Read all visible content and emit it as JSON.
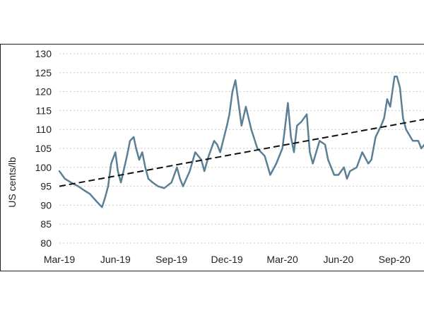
{
  "chart_data": {
    "type": "line",
    "title": "",
    "xlabel": "",
    "ylabel": "US cents/lb",
    "ylim": [
      80,
      130
    ],
    "yticks": [
      80,
      85,
      90,
      95,
      100,
      105,
      110,
      115,
      120,
      125,
      130
    ],
    "xlim": [
      "2019-03-01",
      "2020-10-31"
    ],
    "xticks": [
      {
        "date": "2019-03-01",
        "label": "Mar-19"
      },
      {
        "date": "2019-06-01",
        "label": "Jun-19"
      },
      {
        "date": "2019-09-01",
        "label": "Sep-19"
      },
      {
        "date": "2019-12-01",
        "label": "Dec-19"
      },
      {
        "date": "2020-03-01",
        "label": "Mar-20"
      },
      {
        "date": "2020-06-01",
        "label": "Jun-20"
      },
      {
        "date": "2020-09-01",
        "label": "Sep-20"
      }
    ],
    "grid": "horizontal dotted",
    "colors": {
      "price": "#5b7f95",
      "trend": "#111111",
      "grid": "#c8c8c8",
      "frame": "#222222"
    },
    "series": [
      {
        "style": "solid",
        "x": [
          "2019-03-01",
          "2019-03-10",
          "2019-03-20",
          "2019-04-01",
          "2019-04-10",
          "2019-04-20",
          "2019-05-01",
          "2019-05-10",
          "2019-05-15",
          "2019-05-20",
          "2019-05-25",
          "2019-06-01",
          "2019-06-05",
          "2019-06-10",
          "2019-06-20",
          "2019-06-25",
          "2019-07-01",
          "2019-07-05",
          "2019-07-10",
          "2019-07-15",
          "2019-07-20",
          "2019-07-25",
          "2019-08-01",
          "2019-08-10",
          "2019-08-20",
          "2019-09-01",
          "2019-09-10",
          "2019-09-15",
          "2019-09-20",
          "2019-10-01",
          "2019-10-10",
          "2019-10-20",
          "2019-10-25",
          "2019-11-01",
          "2019-11-10",
          "2019-11-15",
          "2019-11-20",
          "2019-12-01",
          "2019-12-05",
          "2019-12-10",
          "2019-12-15",
          "2019-12-20",
          "2019-12-25",
          "2020-01-01",
          "2020-01-10",
          "2020-01-20",
          "2020-02-01",
          "2020-02-10",
          "2020-02-20",
          "2020-03-01",
          "2020-03-05",
          "2020-03-10",
          "2020-03-15",
          "2020-03-20",
          "2020-03-25",
          "2020-04-01",
          "2020-04-10",
          "2020-04-15",
          "2020-04-20",
          "2020-05-01",
          "2020-05-10",
          "2020-05-15",
          "2020-05-20",
          "2020-05-25",
          "2020-06-01",
          "2020-06-10",
          "2020-06-15",
          "2020-06-20",
          "2020-07-01",
          "2020-07-10",
          "2020-07-20",
          "2020-07-25",
          "2020-08-01",
          "2020-08-10",
          "2020-08-15",
          "2020-08-20",
          "2020-08-25",
          "2020-09-01",
          "2020-09-05",
          "2020-09-10",
          "2020-09-15",
          "2020-09-20",
          "2020-10-01",
          "2020-10-10",
          "2020-10-15",
          "2020-10-20",
          "2020-10-25",
          "2020-10-31"
        ],
        "y": [
          99,
          97,
          96,
          95,
          94,
          93,
          91,
          89.5,
          92,
          95,
          101,
          104,
          99,
          96,
          103,
          107,
          108,
          105,
          102,
          104,
          100,
          97,
          96,
          95,
          94.5,
          96,
          100,
          97,
          95,
          99,
          104,
          102,
          99,
          103,
          107,
          106,
          104,
          111,
          114,
          120,
          123,
          117,
          111,
          116,
          110,
          105,
          103,
          98,
          101,
          105,
          110,
          117,
          108,
          104,
          111,
          112,
          114,
          104,
          101,
          107,
          106,
          102,
          100,
          98,
          98,
          100,
          97,
          99,
          100,
          104,
          101,
          102,
          108,
          111,
          113,
          118,
          116,
          124,
          124,
          121,
          113,
          110,
          107,
          107,
          105,
          106,
          104,
          107
        ]
      },
      {
        "style": "dashed",
        "x": [
          "2019-03-01",
          "2020-10-31"
        ],
        "y": [
          95,
          113
        ]
      }
    ]
  }
}
